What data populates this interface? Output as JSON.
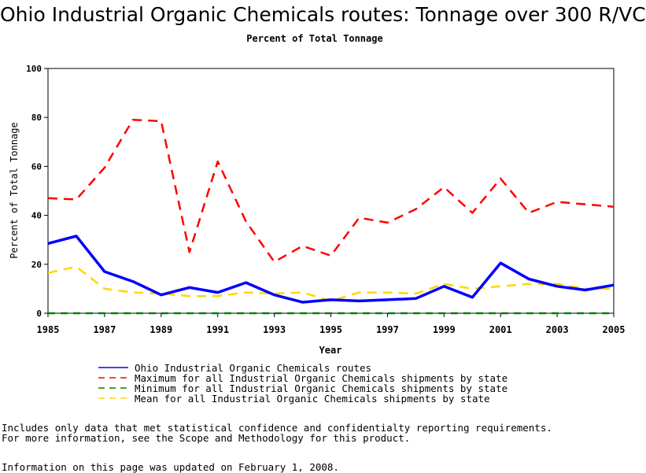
{
  "page": {
    "title": "Ohio Industrial Organic Chemicals routes: Tonnage over 300 R/VC",
    "subtitle": "Percent of Total Tonnage",
    "notes": [
      "Includes only data that met statistical confidence and confidentialty reporting requirements.",
      "For more information, see the Scope and Methodology for this product.",
      "Information on this page was updated on February 1, 2008."
    ]
  },
  "chart_data": {
    "type": "line",
    "title": "Ohio Industrial Organic Chemicals routes: Tonnage over 300 R/VC",
    "subtitle": "Percent of Total Tonnage",
    "xlabel": "Year",
    "ylabel": "Percent of Total Tonnage",
    "xlim": [
      1985,
      2005
    ],
    "ylim": [
      0,
      100
    ],
    "x_ticks": [
      1985,
      1987,
      1989,
      1991,
      1993,
      1995,
      1997,
      1999,
      2001,
      2003,
      2005
    ],
    "y_ticks": [
      0,
      20,
      40,
      60,
      80,
      100
    ],
    "grid": false,
    "legend_position": "bottom",
    "x": [
      1985,
      1986,
      1987,
      1988,
      1989,
      1990,
      1991,
      1992,
      1993,
      1994,
      1995,
      1996,
      1997,
      1998,
      1999,
      2000,
      2001,
      2002,
      2003,
      2004,
      2005
    ],
    "series": [
      {
        "name": "Ohio Industrial Organic Chemicals routes",
        "color": "#0000ff",
        "style": "solid",
        "values": [
          28.5,
          31.5,
          17,
          13,
          7.5,
          10.5,
          8.5,
          12.5,
          7.5,
          4.5,
          5.5,
          5,
          5.5,
          6,
          11,
          6.5,
          20.5,
          14,
          11,
          9.5,
          11.5
        ]
      },
      {
        "name": "Maximum for all Industrial Organic Chemicals shipments by state",
        "color": "#ff0000",
        "style": "dashed",
        "values": [
          47,
          46.5,
          59.5,
          79,
          78.5,
          25,
          62,
          37.5,
          21,
          27.5,
          23.5,
          39,
          37,
          42.5,
          51.5,
          41,
          55,
          41,
          45.5,
          44.5,
          43.5
        ]
      },
      {
        "name": "Minimum for all Industrial Organic Chemicals shipments by state",
        "color": "#008000",
        "style": "dashed",
        "values": [
          0,
          0,
          0,
          0,
          0,
          0,
          0,
          0,
          0,
          0,
          0,
          0,
          0,
          0,
          0,
          0,
          0,
          0,
          0,
          0,
          0
        ]
      },
      {
        "name": "Mean for all Industrial Organic Chemicals shipments by state",
        "color": "#ffd700",
        "style": "dashed",
        "values": [
          16.5,
          19,
          10,
          8.5,
          8,
          7,
          7,
          8.5,
          8,
          8.5,
          5,
          8.5,
          8.5,
          8,
          12,
          10,
          11,
          12,
          12,
          10,
          10
        ]
      }
    ]
  }
}
